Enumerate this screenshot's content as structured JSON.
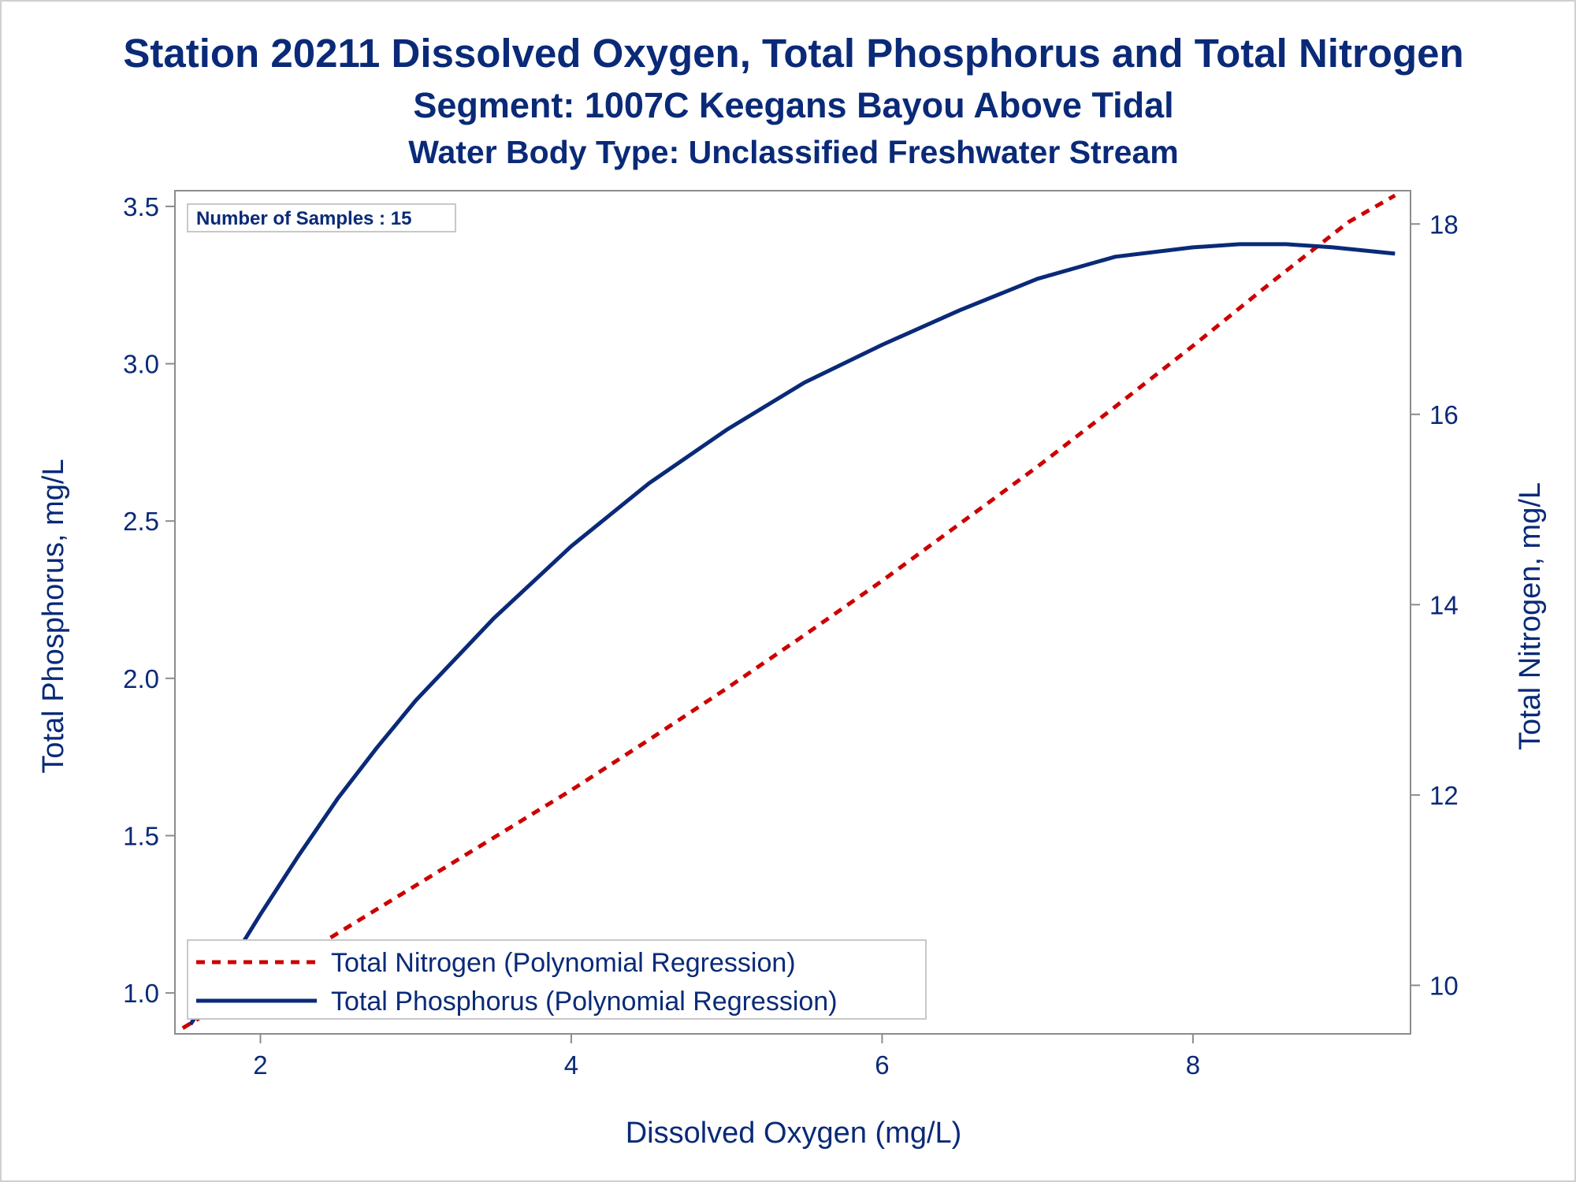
{
  "titles": {
    "line1": "Station 20211  Dissolved Oxygen, Total Phosphorus and Total Nitrogen",
    "line2": "Segment: 1007C  Keegans Bayou Above Tidal",
    "line3": "Water Body Type: Unclassified Freshwater Stream"
  },
  "inset": {
    "text": "Number of Samples : 15"
  },
  "colors": {
    "text": "#0a2a78",
    "phosphorus_line": "#0a2a78",
    "nitrogen_line": "#cc0000",
    "frame": "#8c8c8c",
    "legend_border": "#c8c8c8"
  },
  "chart_data": {
    "type": "line",
    "xlabel": "Dissolved Oxygen (mg/L)",
    "ylabel": "Total Phosphorus, mg/L",
    "y2label": "Total Nitrogen, mg/L",
    "xlim": [
      1.45,
      9.4
    ],
    "ylim": [
      0.87,
      3.55
    ],
    "y2lim": [
      9.49,
      18.35
    ],
    "xticks": [
      "2",
      "4",
      "6",
      "8"
    ],
    "xtick_values": [
      2,
      4,
      6,
      8
    ],
    "yticks": [
      "1.0",
      "1.5",
      "2.0",
      "2.5",
      "3.0",
      "3.5"
    ],
    "ytick_values": [
      1.0,
      1.5,
      2.0,
      2.5,
      3.0,
      3.5
    ],
    "y2ticks": [
      "10",
      "12",
      "14",
      "16",
      "18"
    ],
    "y2tick_values": [
      10,
      12,
      14,
      16,
      18
    ],
    "grid": false,
    "legend_position": "bottom-left",
    "series": [
      {
        "name": "Total Nitrogen (Polynomial Regression)",
        "axis": "y2",
        "style": "dashed",
        "x": [
          1.5,
          2.0,
          2.5,
          3.0,
          3.5,
          4.0,
          4.5,
          5.0,
          5.5,
          6.0,
          6.5,
          7.0,
          7.5,
          8.0,
          8.5,
          9.0,
          9.3
        ],
        "y": [
          9.55,
          10.05,
          10.55,
          11.05,
          11.55,
          12.05,
          12.58,
          13.12,
          13.68,
          14.25,
          14.85,
          15.45,
          16.08,
          16.72,
          17.38,
          18.02,
          18.3
        ]
      },
      {
        "name": "Total Phosphorus (Polynomial Regression)",
        "axis": "y",
        "style": "solid",
        "x": [
          1.55,
          1.75,
          2.0,
          2.25,
          2.5,
          2.75,
          3.0,
          3.5,
          4.0,
          4.5,
          5.0,
          5.5,
          6.0,
          6.5,
          7.0,
          7.5,
          8.0,
          8.3,
          8.6,
          8.9,
          9.3
        ],
        "y": [
          0.9,
          1.05,
          1.25,
          1.44,
          1.62,
          1.78,
          1.93,
          2.19,
          2.42,
          2.62,
          2.79,
          2.94,
          3.06,
          3.17,
          3.27,
          3.34,
          3.37,
          3.38,
          3.38,
          3.37,
          3.35
        ]
      }
    ]
  }
}
